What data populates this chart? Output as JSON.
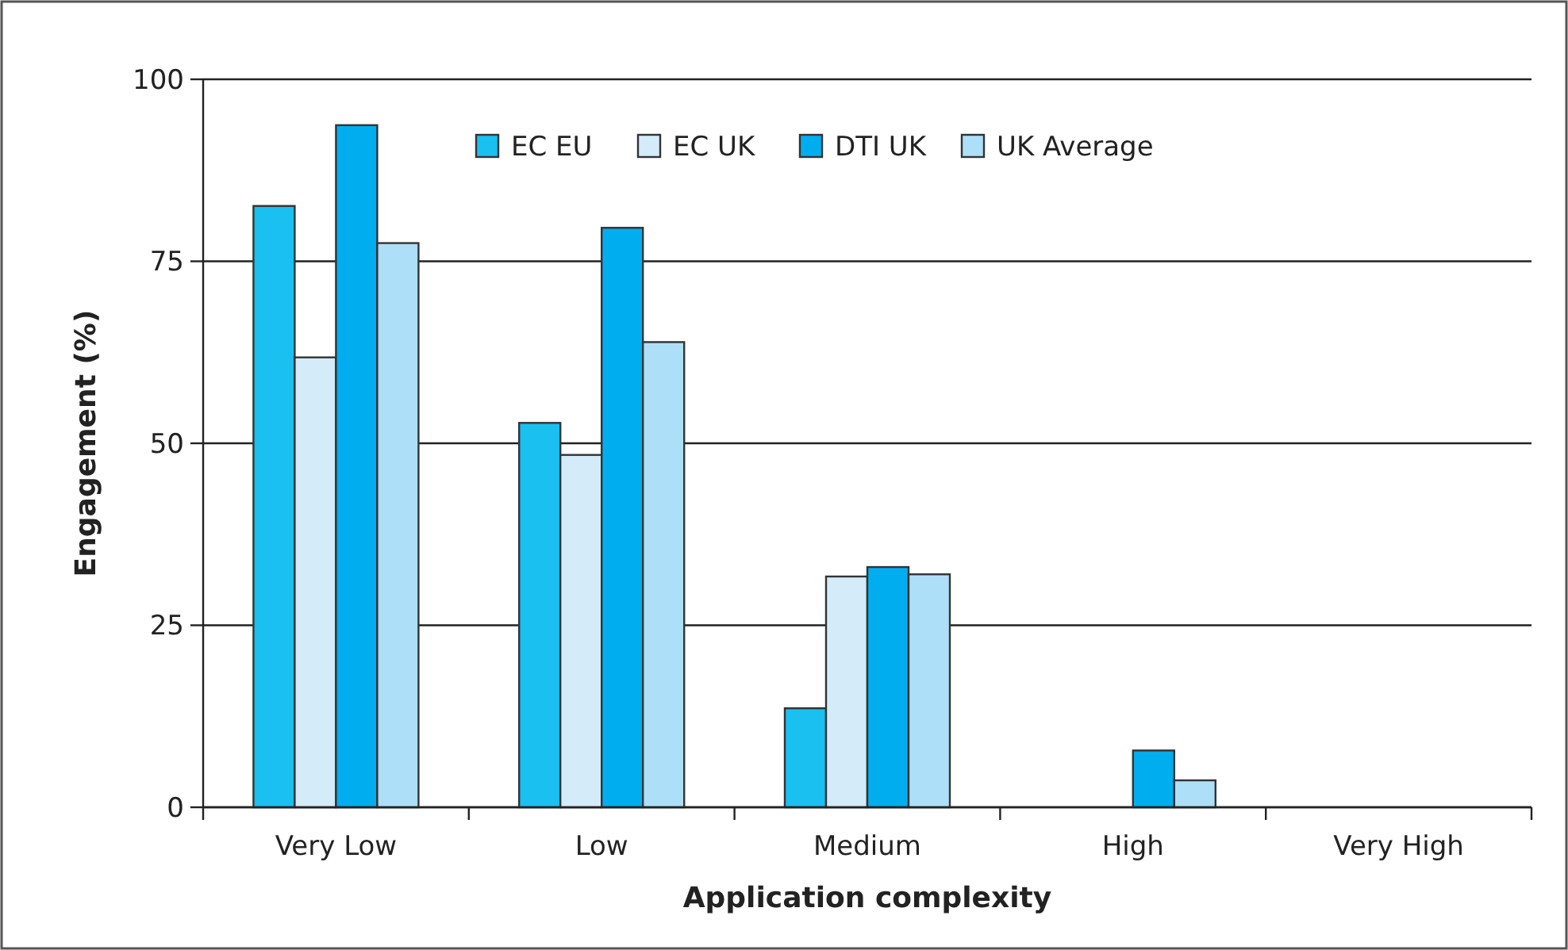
{
  "chart_data": {
    "type": "bar",
    "xlabel": "Application complexity",
    "ylabel": "Engagement (%)",
    "categories": [
      "Very Low",
      "Low",
      "Medium",
      "High",
      "Very High"
    ],
    "series": [
      {
        "name": "EC EU",
        "color": "#19c0f0",
        "values": [
          82.6,
          52.8,
          13.6,
          null,
          null
        ]
      },
      {
        "name": "EC UK",
        "color": "#d4ecfa",
        "values": [
          61.8,
          48.4,
          31.7,
          null,
          null
        ]
      },
      {
        "name": "DTI UK",
        "color": "#00aeef",
        "values": [
          93.7,
          79.6,
          33.0,
          7.8,
          null
        ]
      },
      {
        "name": "UK Average",
        "color": "#addff8",
        "values": [
          77.5,
          63.9,
          32.0,
          3.7,
          null
        ]
      }
    ],
    "ylim": [
      0,
      100
    ],
    "yticks": [
      0,
      25,
      50,
      75,
      100
    ],
    "grid": "y",
    "legend": "top"
  }
}
